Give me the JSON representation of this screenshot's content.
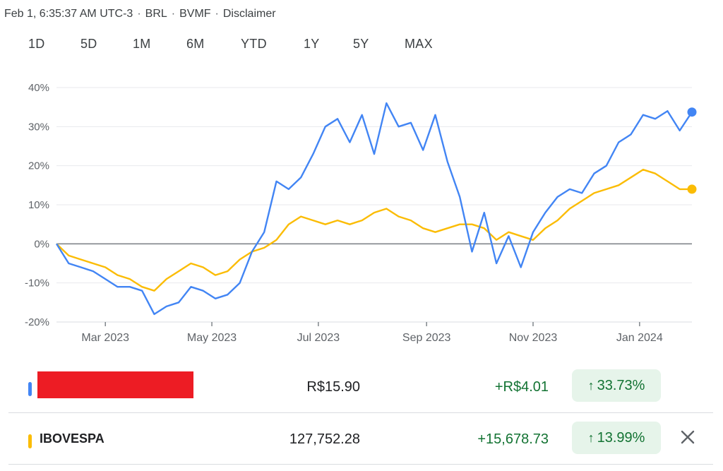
{
  "header": {
    "timestamp": "Feb 1, 6:35:37 AM UTC-3",
    "currency": "BRL",
    "exchange": "BVMF",
    "disclaimer": "Disclaimer"
  },
  "ranges": [
    {
      "label": "1D",
      "active": false
    },
    {
      "label": "5D",
      "active": false
    },
    {
      "label": "1M",
      "active": false
    },
    {
      "label": "6M",
      "active": false
    },
    {
      "label": "YTD",
      "active": false
    },
    {
      "label": "1Y",
      "active": true
    },
    {
      "label": "5Y",
      "active": false
    },
    {
      "label": "MAX",
      "active": false
    }
  ],
  "chart_data": {
    "type": "line",
    "xlabel": "",
    "ylabel": "",
    "y_ticks": [
      "40%",
      "30%",
      "20%",
      "10%",
      "0%",
      "-10%",
      "-20%"
    ],
    "ylim": [
      -20,
      40
    ],
    "x_ticks": [
      "Mar 2023",
      "May 2023",
      "Jul 2023",
      "Sep 2023",
      "Nov 2023",
      "Jan 2024"
    ],
    "baseline": 0,
    "series": [
      {
        "color": "#4285f4",
        "x": [
          "2023-02-01",
          "2023-02-08",
          "2023-02-15",
          "2023-02-22",
          "2023-03-01",
          "2023-03-08",
          "2023-03-15",
          "2023-03-22",
          "2023-03-29",
          "2023-04-05",
          "2023-04-12",
          "2023-04-19",
          "2023-04-26",
          "2023-05-03",
          "2023-05-10",
          "2023-05-17",
          "2023-05-24",
          "2023-05-31",
          "2023-06-07",
          "2023-06-14",
          "2023-06-21",
          "2023-06-28",
          "2023-07-05",
          "2023-07-12",
          "2023-07-19",
          "2023-07-26",
          "2023-08-02",
          "2023-08-09",
          "2023-08-16",
          "2023-08-23",
          "2023-08-30",
          "2023-09-06",
          "2023-09-13",
          "2023-09-20",
          "2023-09-27",
          "2023-10-04",
          "2023-10-11",
          "2023-10-18",
          "2023-10-25",
          "2023-11-01",
          "2023-11-08",
          "2023-11-15",
          "2023-11-22",
          "2023-11-29",
          "2023-12-06",
          "2023-12-13",
          "2023-12-20",
          "2023-12-27",
          "2024-01-03",
          "2024-01-10",
          "2024-01-17",
          "2024-01-24",
          "2024-01-31"
        ],
        "y": [
          0,
          -5,
          -6,
          -7,
          -9,
          -11,
          -11,
          -12,
          -18,
          -16,
          -15,
          -11,
          -12,
          -14,
          -13,
          -10,
          -2,
          3,
          16,
          14,
          17,
          23,
          30,
          32,
          26,
          33,
          23,
          36,
          30,
          31,
          24,
          33,
          21,
          12,
          -2,
          8,
          -5,
          2,
          -6,
          3,
          8,
          12,
          14,
          13,
          18,
          20,
          26,
          28,
          33,
          32,
          34,
          29,
          33.73
        ]
      },
      {
        "color": "#fbbc04",
        "x": [
          "2023-02-01",
          "2023-02-08",
          "2023-02-15",
          "2023-02-22",
          "2023-03-01",
          "2023-03-08",
          "2023-03-15",
          "2023-03-22",
          "2023-03-29",
          "2023-04-05",
          "2023-04-12",
          "2023-04-19",
          "2023-04-26",
          "2023-05-03",
          "2023-05-10",
          "2023-05-17",
          "2023-05-24",
          "2023-05-31",
          "2023-06-07",
          "2023-06-14",
          "2023-06-21",
          "2023-06-28",
          "2023-07-05",
          "2023-07-12",
          "2023-07-19",
          "2023-07-26",
          "2023-08-02",
          "2023-08-09",
          "2023-08-16",
          "2023-08-23",
          "2023-08-30",
          "2023-09-06",
          "2023-09-13",
          "2023-09-20",
          "2023-09-27",
          "2023-10-04",
          "2023-10-11",
          "2023-10-18",
          "2023-10-25",
          "2023-11-01",
          "2023-11-08",
          "2023-11-15",
          "2023-11-22",
          "2023-11-29",
          "2023-12-06",
          "2023-12-13",
          "2023-12-20",
          "2023-12-27",
          "2024-01-03",
          "2024-01-10",
          "2024-01-17",
          "2024-01-24",
          "2024-01-31"
        ],
        "y": [
          0,
          -3,
          -4,
          -5,
          -6,
          -8,
          -9,
          -11,
          -12,
          -9,
          -7,
          -5,
          -6,
          -8,
          -7,
          -4,
          -2,
          -1,
          1,
          5,
          7,
          6,
          5,
          6,
          5,
          6,
          8,
          9,
          7,
          6,
          4,
          3,
          4,
          5,
          5,
          4,
          1,
          3,
          2,
          1,
          4,
          6,
          9,
          11,
          13,
          14,
          15,
          17,
          19,
          18,
          16,
          14,
          13.99
        ]
      }
    ]
  },
  "rows": [
    {
      "name": "",
      "color": "#4285f4",
      "price": "R$15.90",
      "change": "+R$4.01",
      "pct": "33.73%"
    },
    {
      "name": "IBOVESPA",
      "color": "#fbbc04",
      "price": "127,752.28",
      "change": "+15,678.73",
      "pct": "13.99%"
    }
  ]
}
